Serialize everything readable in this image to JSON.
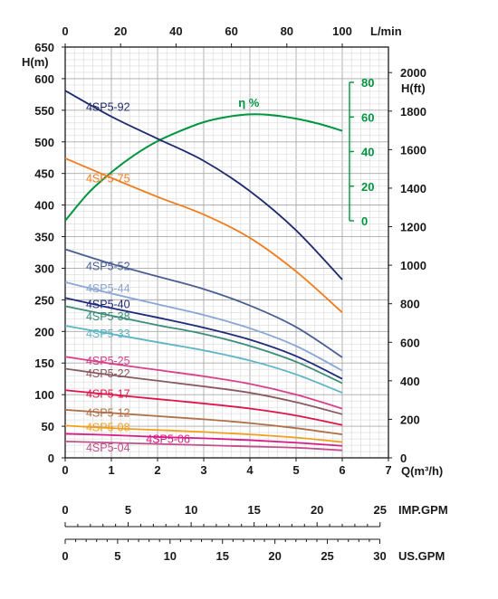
{
  "chart_data": {
    "type": "line",
    "title": "",
    "x_axis": {
      "label": "Q(m³/h)",
      "range": [
        0,
        7
      ],
      "ticks": [
        "0",
        "1",
        "2",
        "3",
        "4",
        "5",
        "6",
        "7"
      ]
    },
    "top_axis": {
      "label": "L/min",
      "ticks": [
        "0",
        "20",
        "40",
        "60",
        "80",
        "100"
      ]
    },
    "y_axis_left": {
      "label": "H(m)",
      "range": [
        0,
        650
      ],
      "ticks": [
        "0",
        "50",
        "100",
        "150",
        "200",
        "250",
        "300",
        "350",
        "400",
        "450",
        "500",
        "550",
        "600",
        "650"
      ]
    },
    "y_axis_right": {
      "label": "H(ft)",
      "ticks": [
        "0",
        "200",
        "400",
        "600",
        "800",
        "1000",
        "1200",
        "1400",
        "1600",
        "1800",
        "2000"
      ]
    },
    "efficiency_axis": {
      "label": "η %",
      "range": [
        0,
        80
      ],
      "ticks": [
        "0",
        "20",
        "40",
        "60",
        "80"
      ]
    },
    "bottom_scales": [
      {
        "label": "IMP.GPM",
        "ticks": [
          "0",
          "5",
          "10",
          "15",
          "20",
          "25"
        ]
      },
      {
        "label": "US.GPM",
        "ticks": [
          "0",
          "5",
          "10",
          "15",
          "20",
          "25",
          "30"
        ]
      }
    ],
    "grid": true,
    "series": [
      {
        "name": "4SP5-92",
        "color": "#1f2a6e",
        "label_at": [
          0.45,
          555
        ],
        "x": [
          0,
          1,
          2,
          3,
          4,
          5,
          6
        ],
        "y": [
          581,
          540,
          505,
          470,
          422,
          360,
          282
        ]
      },
      {
        "name": "4SP5-75",
        "color": "#f07d1d",
        "label_at": [
          0.45,
          442
        ],
        "x": [
          0,
          1,
          2,
          3,
          4,
          5,
          6
        ],
        "y": [
          474,
          443,
          413,
          385,
          348,
          295,
          230
        ]
      },
      {
        "name": "4SP5-52",
        "color": "#4a5f93",
        "label_at": [
          0.45,
          303
        ],
        "x": [
          0,
          1,
          2,
          3,
          4,
          5,
          6
        ],
        "y": [
          330,
          307,
          287,
          267,
          241,
          207,
          159
        ]
      },
      {
        "name": "4SP5-44",
        "color": "#8aa6d6",
        "label_at": [
          0.45,
          268
        ],
        "x": [
          0,
          1,
          2,
          3,
          4,
          5,
          6
        ],
        "y": [
          278,
          260,
          243,
          226,
          205,
          177,
          138
        ]
      },
      {
        "name": "4SP5-40",
        "color": "#1f2b7a",
        "label_at": [
          0.45,
          243
        ],
        "x": [
          0,
          1,
          2,
          3,
          4,
          5,
          6
        ],
        "y": [
          253,
          237,
          222,
          206,
          187,
          161,
          125
        ]
      },
      {
        "name": "4SP5-38",
        "color": "#3c8d7a",
        "label_at": [
          0.45,
          223
        ],
        "x": [
          0,
          1,
          2,
          3,
          4,
          5,
          6
        ],
        "y": [
          240,
          225,
          210,
          196,
          177,
          152,
          118
        ]
      },
      {
        "name": "4SP5-33",
        "color": "#5bb5c4",
        "label_at": [
          0.45,
          196
        ],
        "x": [
          0,
          1,
          2,
          3,
          4,
          5,
          6
        ],
        "y": [
          209,
          196,
          183,
          170,
          154,
          132,
          103
        ]
      },
      {
        "name": "4SP5-25",
        "color": "#d8408a",
        "label_at": [
          0.45,
          153
        ],
        "x": [
          0,
          1,
          2,
          3,
          4,
          5,
          6
        ],
        "y": [
          160,
          149,
          139,
          129,
          117,
          100,
          78
        ]
      },
      {
        "name": "4SP5-22",
        "color": "#8a5a62",
        "label_at": [
          0.45,
          133
        ],
        "x": [
          0,
          1,
          2,
          3,
          4,
          5,
          6
        ],
        "y": [
          141,
          131,
          122,
          113,
          103,
          88,
          69
        ]
      },
      {
        "name": "4SP5-17",
        "color": "#e0144a",
        "label_at": [
          0.45,
          101
        ],
        "x": [
          0,
          1,
          2,
          3,
          4,
          5,
          6
        ],
        "y": [
          107,
          100,
          93,
          86,
          78,
          67,
          52
        ]
      },
      {
        "name": "4SP5-12",
        "color": "#b07048",
        "label_at": [
          0.45,
          71
        ],
        "x": [
          0,
          1,
          2,
          3,
          4,
          5,
          6
        ],
        "y": [
          76,
          71,
          66,
          61,
          55,
          47,
          37
        ]
      },
      {
        "name": "4SP5-08",
        "color": "#f0a020",
        "label_at": [
          0.45,
          48
        ],
        "x": [
          0,
          1,
          2,
          3,
          4,
          5,
          6
        ],
        "y": [
          51,
          47,
          44,
          41,
          37,
          32,
          25
        ]
      },
      {
        "name": "4SP5-06",
        "color": "#d81b86",
        "label_at": [
          1.75,
          29
        ],
        "x": [
          0,
          1,
          2,
          3,
          4,
          5,
          6
        ],
        "y": [
          38,
          36,
          33,
          31,
          28,
          24,
          19
        ]
      },
      {
        "name": "4SP5-04",
        "color": "#c0508a",
        "label_at": [
          0.45,
          16
        ],
        "x": [
          0,
          1,
          2,
          3,
          4,
          5,
          6
        ],
        "y": [
          26,
          24,
          22,
          20,
          18,
          16,
          12
        ]
      }
    ],
    "efficiency": {
      "name": "η %",
      "color": "#00953f",
      "label_at": [
        3.75,
        66
      ],
      "x": [
        0,
        0.5,
        1,
        1.5,
        2,
        2.5,
        3,
        3.5,
        4,
        4.5,
        5,
        5.5,
        6
      ],
      "y": [
        0,
        16,
        28,
        38,
        46,
        52,
        57,
        60,
        61.5,
        61,
        59,
        56,
        52
      ]
    }
  }
}
